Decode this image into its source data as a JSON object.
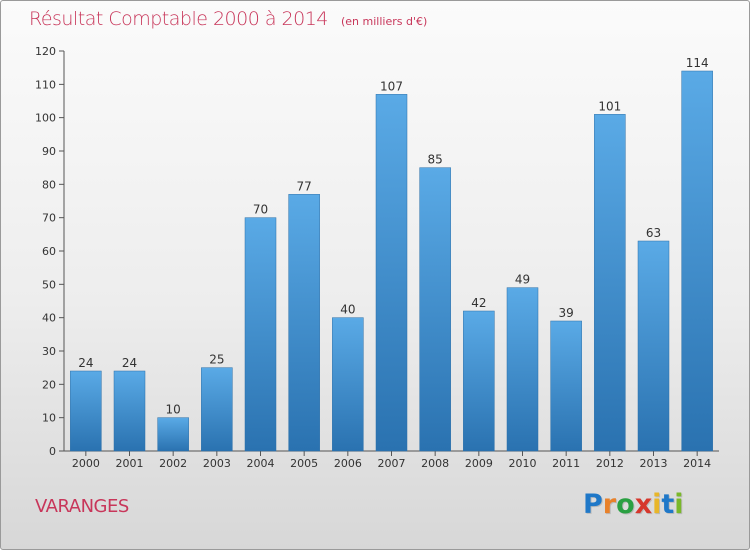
{
  "header": {
    "title": "Résultat Comptable 2000 à 2014",
    "unit": "(en milliers d'€)"
  },
  "footer": {
    "commune": "VARANGES",
    "logo_text": "Proxiti"
  },
  "colors": {
    "accent": "#c8365a",
    "bar_top": "#5aaae6",
    "bar_bottom": "#2a72b0",
    "logo": [
      "#1f78c8",
      "#e8812a",
      "#2aa042",
      "#d6372c",
      "#e8b62a",
      "#1f78c8",
      "#7ab82a"
    ]
  },
  "chart_data": {
    "type": "bar",
    "categories": [
      "2000",
      "2001",
      "2002",
      "2003",
      "2004",
      "2005",
      "2006",
      "2007",
      "2008",
      "2009",
      "2010",
      "2011",
      "2012",
      "2013",
      "2014"
    ],
    "values": [
      24,
      24,
      10,
      25,
      70,
      77,
      40,
      107,
      85,
      42,
      49,
      39,
      101,
      63,
      114
    ],
    "data_labels": [
      "24",
      "24",
      "10",
      "25",
      "70",
      "77",
      "40",
      "107",
      "85",
      "42",
      "49",
      "39",
      "101",
      "63",
      "114"
    ],
    "yticks": [
      "0",
      "10",
      "20",
      "30",
      "40",
      "50",
      "60",
      "70",
      "80",
      "90",
      "100",
      "110",
      "120"
    ],
    "ylim": [
      0,
      120
    ],
    "title": "Résultat Comptable 2000 à 2014",
    "xlabel": "",
    "ylabel": "",
    "grid": false
  }
}
